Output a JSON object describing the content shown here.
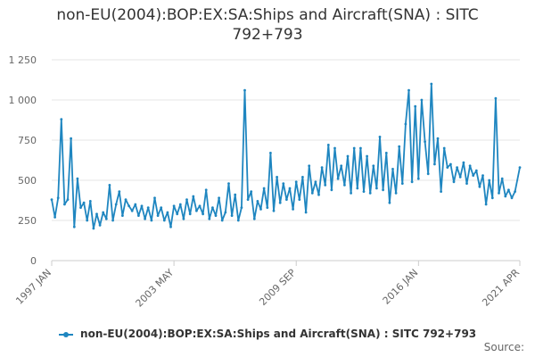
{
  "chart_data": {
    "type": "line",
    "title": "non-EU(2004):BOP:EX:SA:Ships and Aircraft(SNA) : SITC 792+793",
    "xlabel": "",
    "ylabel": "",
    "ylim": [
      0,
      1250
    ],
    "y_ticks": [
      "0",
      "250",
      "500",
      "750",
      "1 000",
      "1 250"
    ],
    "x_range": [
      "1997-01",
      "2021-04"
    ],
    "x_ticks": [
      {
        "label": "1997 JAN",
        "date": "1997-01"
      },
      {
        "label": "2003 MAY",
        "date": "2003-05"
      },
      {
        "label": "2009 SEP",
        "date": "2009-09"
      },
      {
        "label": "2016 JAN",
        "date": "2016-01"
      },
      {
        "label": "2021 APR",
        "date": "2021-04"
      }
    ],
    "grid": true,
    "legend_position": "bottom",
    "series": [
      {
        "name": "non-EU(2004):BOP:EX:SA:Ships and Aircraft(SNA) : SITC 792+793",
        "color": "#1f86c0",
        "points": [
          [
            "1997-01",
            380
          ],
          [
            "1997-03",
            270
          ],
          [
            "1997-05",
            390
          ],
          [
            "1997-07",
            880
          ],
          [
            "1997-09",
            350
          ],
          [
            "1997-11",
            380
          ],
          [
            "1998-01",
            760
          ],
          [
            "1998-03",
            210
          ],
          [
            "1998-05",
            510
          ],
          [
            "1998-07",
            330
          ],
          [
            "1998-09",
            360
          ],
          [
            "1998-11",
            250
          ],
          [
            "1999-01",
            370
          ],
          [
            "1999-03",
            200
          ],
          [
            "1999-05",
            290
          ],
          [
            "1999-07",
            220
          ],
          [
            "1999-09",
            300
          ],
          [
            "1999-11",
            260
          ],
          [
            "2000-01",
            470
          ],
          [
            "2000-03",
            250
          ],
          [
            "2000-05",
            350
          ],
          [
            "2000-07",
            430
          ],
          [
            "2000-09",
            280
          ],
          [
            "2000-11",
            380
          ],
          [
            "2001-01",
            340
          ],
          [
            "2001-03",
            310
          ],
          [
            "2001-05",
            350
          ],
          [
            "2001-07",
            280
          ],
          [
            "2001-09",
            340
          ],
          [
            "2001-11",
            260
          ],
          [
            "2002-01",
            330
          ],
          [
            "2002-03",
            250
          ],
          [
            "2002-05",
            390
          ],
          [
            "2002-07",
            280
          ],
          [
            "2002-09",
            330
          ],
          [
            "2002-11",
            250
          ],
          [
            "2003-01",
            300
          ],
          [
            "2003-03",
            210
          ],
          [
            "2003-05",
            340
          ],
          [
            "2003-07",
            290
          ],
          [
            "2003-09",
            350
          ],
          [
            "2003-11",
            260
          ],
          [
            "2004-01",
            380
          ],
          [
            "2004-03",
            290
          ],
          [
            "2004-05",
            400
          ],
          [
            "2004-07",
            310
          ],
          [
            "2004-09",
            340
          ],
          [
            "2004-11",
            290
          ],
          [
            "2005-01",
            440
          ],
          [
            "2005-03",
            260
          ],
          [
            "2005-05",
            330
          ],
          [
            "2005-07",
            280
          ],
          [
            "2005-09",
            390
          ],
          [
            "2005-11",
            250
          ],
          [
            "2006-01",
            300
          ],
          [
            "2006-03",
            480
          ],
          [
            "2006-05",
            280
          ],
          [
            "2006-07",
            410
          ],
          [
            "2006-09",
            250
          ],
          [
            "2006-11",
            330
          ],
          [
            "2007-01",
            1060
          ],
          [
            "2007-03",
            380
          ],
          [
            "2007-05",
            430
          ],
          [
            "2007-07",
            260
          ],
          [
            "2007-09",
            370
          ],
          [
            "2007-11",
            320
          ],
          [
            "2008-01",
            450
          ],
          [
            "2008-03",
            330
          ],
          [
            "2008-05",
            670
          ],
          [
            "2008-07",
            310
          ],
          [
            "2008-09",
            520
          ],
          [
            "2008-11",
            360
          ],
          [
            "2009-01",
            480
          ],
          [
            "2009-03",
            380
          ],
          [
            "2009-05",
            450
          ],
          [
            "2009-07",
            320
          ],
          [
            "2009-09",
            490
          ],
          [
            "2009-11",
            380
          ],
          [
            "2010-01",
            520
          ],
          [
            "2010-03",
            300
          ],
          [
            "2010-05",
            590
          ],
          [
            "2010-07",
            420
          ],
          [
            "2010-09",
            490
          ],
          [
            "2010-11",
            410
          ],
          [
            "2011-01",
            580
          ],
          [
            "2011-03",
            470
          ],
          [
            "2011-05",
            720
          ],
          [
            "2011-07",
            440
          ],
          [
            "2011-09",
            700
          ],
          [
            "2011-11",
            510
          ],
          [
            "2012-01",
            590
          ],
          [
            "2012-03",
            470
          ],
          [
            "2012-05",
            650
          ],
          [
            "2012-07",
            420
          ],
          [
            "2012-09",
            700
          ],
          [
            "2012-11",
            450
          ],
          [
            "2013-01",
            700
          ],
          [
            "2013-03",
            430
          ],
          [
            "2013-05",
            650
          ],
          [
            "2013-07",
            420
          ],
          [
            "2013-09",
            590
          ],
          [
            "2013-11",
            450
          ],
          [
            "2014-01",
            770
          ],
          [
            "2014-03",
            440
          ],
          [
            "2014-05",
            670
          ],
          [
            "2014-07",
            360
          ],
          [
            "2014-09",
            570
          ],
          [
            "2014-11",
            420
          ],
          [
            "2015-01",
            710
          ],
          [
            "2015-03",
            480
          ],
          [
            "2015-05",
            850
          ],
          [
            "2015-07",
            1060
          ],
          [
            "2015-09",
            490
          ],
          [
            "2015-11",
            960
          ],
          [
            "2016-01",
            510
          ],
          [
            "2016-03",
            1000
          ],
          [
            "2016-05",
            740
          ],
          [
            "2016-07",
            540
          ],
          [
            "2016-09",
            1100
          ],
          [
            "2016-11",
            600
          ],
          [
            "2017-01",
            760
          ],
          [
            "2017-03",
            430
          ],
          [
            "2017-05",
            700
          ],
          [
            "2017-07",
            580
          ],
          [
            "2017-09",
            600
          ],
          [
            "2017-11",
            490
          ],
          [
            "2018-01",
            580
          ],
          [
            "2018-03",
            520
          ],
          [
            "2018-05",
            610
          ],
          [
            "2018-07",
            480
          ],
          [
            "2018-09",
            590
          ],
          [
            "2018-11",
            530
          ],
          [
            "2019-01",
            560
          ],
          [
            "2019-03",
            460
          ],
          [
            "2019-05",
            530
          ],
          [
            "2019-07",
            350
          ],
          [
            "2019-09",
            500
          ],
          [
            "2019-11",
            390
          ],
          [
            "2020-01",
            1010
          ],
          [
            "2020-03",
            420
          ],
          [
            "2020-05",
            510
          ],
          [
            "2020-07",
            400
          ],
          [
            "2020-09",
            440
          ],
          [
            "2020-11",
            390
          ],
          [
            "2021-01",
            430
          ],
          [
            "2021-04",
            580
          ]
        ]
      }
    ]
  },
  "legend": {
    "label": "non-EU(2004):BOP:EX:SA:Ships and Aircraft(SNA) : SITC 792+793"
  },
  "footer": {
    "source_label": "Source:"
  }
}
